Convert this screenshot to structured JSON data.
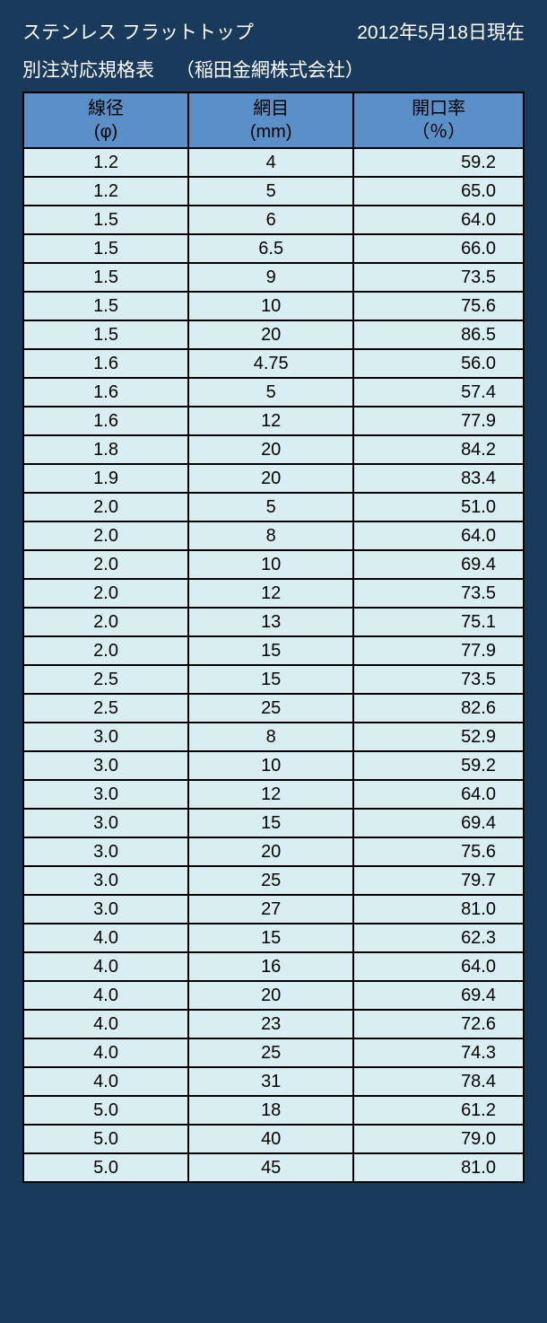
{
  "title_left": "ステンレス フラットトップ",
  "title_right": "2012年5月18日現在",
  "subtitle_left": "別注対応規格表",
  "subtitle_company": "（稲田金網株式会社）",
  "columns": [
    {
      "main": "線径",
      "sub": "(φ)"
    },
    {
      "main": "網目",
      "sub": "(mm)"
    },
    {
      "main": "開口率",
      "sub": "（％）"
    }
  ],
  "rows": [
    [
      "1.2",
      "4",
      "59.2"
    ],
    [
      "1.2",
      "5",
      "65.0"
    ],
    [
      "1.5",
      "6",
      "64.0"
    ],
    [
      "1.5",
      "6.5",
      "66.0"
    ],
    [
      "1.5",
      "9",
      "73.5"
    ],
    [
      "1.5",
      "10",
      "75.6"
    ],
    [
      "1.5",
      "20",
      "86.5"
    ],
    [
      "1.6",
      "4.75",
      "56.0"
    ],
    [
      "1.6",
      "5",
      "57.4"
    ],
    [
      "1.6",
      "12",
      "77.9"
    ],
    [
      "1.8",
      "20",
      "84.2"
    ],
    [
      "1.9",
      "20",
      "83.4"
    ],
    [
      "2.0",
      "5",
      "51.0"
    ],
    [
      "2.0",
      "8",
      "64.0"
    ],
    [
      "2.0",
      "10",
      "69.4"
    ],
    [
      "2.0",
      "12",
      "73.5"
    ],
    [
      "2.0",
      "13",
      "75.1"
    ],
    [
      "2.0",
      "15",
      "77.9"
    ],
    [
      "2.5",
      "15",
      "73.5"
    ],
    [
      "2.5",
      "25",
      "82.6"
    ],
    [
      "3.0",
      "8",
      "52.9"
    ],
    [
      "3.0",
      "10",
      "59.2"
    ],
    [
      "3.0",
      "12",
      "64.0"
    ],
    [
      "3.0",
      "15",
      "69.4"
    ],
    [
      "3.0",
      "20",
      "75.6"
    ],
    [
      "3.0",
      "25",
      "79.7"
    ],
    [
      "3.0",
      "27",
      "81.0"
    ],
    [
      "4.0",
      "15",
      "62.3"
    ],
    [
      "4.0",
      "16",
      "64.0"
    ],
    [
      "4.0",
      "20",
      "69.4"
    ],
    [
      "4.0",
      "23",
      "72.6"
    ],
    [
      "4.0",
      "25",
      "74.3"
    ],
    [
      "4.0",
      "31",
      "78.4"
    ],
    [
      "5.0",
      "18",
      "61.2"
    ],
    [
      "5.0",
      "40",
      "79.0"
    ],
    [
      "5.0",
      "45",
      "81.0"
    ]
  ],
  "styling": {
    "page_background": "#1a3a5c",
    "title_color": "#ffffff",
    "header_background": "#5a8fc7",
    "cell_background": "#d9eef0",
    "border_color": "#000000",
    "title_fontsize": 21,
    "cell_fontsize": 20,
    "col_alignments": [
      "center",
      "center",
      "right"
    ],
    "col_widths_pct": [
      33,
      33,
      34
    ]
  }
}
